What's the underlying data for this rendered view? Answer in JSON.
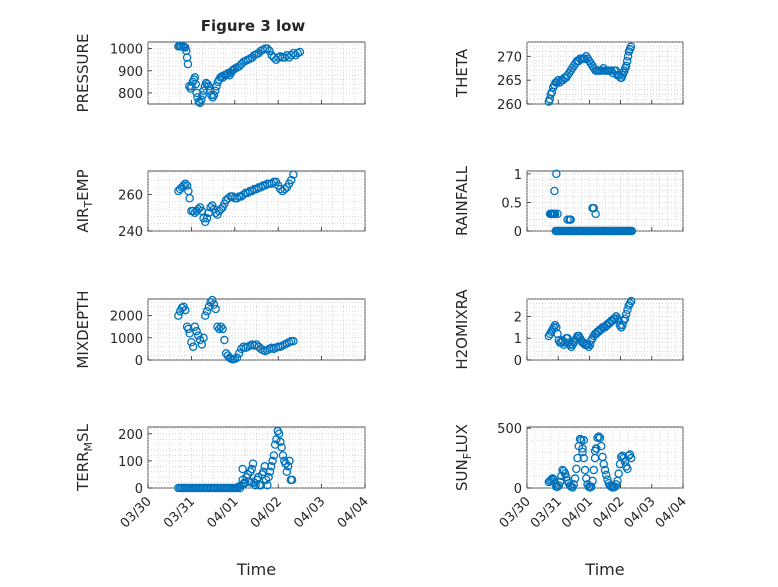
{
  "figure": {
    "title": "Figure 3 low",
    "marker_color": "#0072BD",
    "x_tick_labels": [
      "03/30",
      "03/31",
      "04/01",
      "04/02",
      "04/03",
      "04/04"
    ]
  },
  "chart_data": [
    {
      "type": "scatter",
      "ylabel": "PRESSURE",
      "xlabel": "",
      "ylim": [
        750,
        1030
      ],
      "yticks": [
        800,
        900,
        1000
      ],
      "x_unit": "days since 03/30",
      "x": [
        0.7,
        0.73,
        0.76,
        0.8,
        0.83,
        0.86,
        0.88,
        0.9,
        0.92,
        0.95,
        0.98,
        1.0,
        1.03,
        1.06,
        1.08,
        1.1,
        1.12,
        1.14,
        1.17,
        1.2,
        1.23,
        1.26,
        1.28,
        1.31,
        1.34,
        1.37,
        1.4,
        1.43,
        1.46,
        1.49,
        1.52,
        1.55,
        1.58,
        1.61,
        1.64,
        1.67,
        1.7,
        1.73,
        1.76,
        1.79,
        1.82,
        1.85,
        1.88,
        1.91,
        1.94,
        1.97,
        2.0,
        2.05,
        2.1,
        2.15,
        2.2,
        2.25,
        2.3,
        2.35,
        2.4,
        2.45,
        2.5,
        2.55,
        2.6,
        2.65,
        2.7,
        2.75,
        2.8,
        2.85,
        2.9,
        2.95,
        3.0,
        3.05,
        3.1,
        3.15,
        3.2,
        3.25,
        3.3,
        3.35,
        3.4,
        3.45,
        3.5
      ],
      "y": [
        1010,
        1010,
        1010,
        1010,
        1008,
        1005,
        990,
        960,
        930,
        830,
        820,
        830,
        850,
        860,
        870,
        840,
        800,
        780,
        760,
        755,
        770,
        790,
        810,
        830,
        845,
        840,
        830,
        810,
        790,
        780,
        790,
        810,
        830,
        850,
        860,
        870,
        875,
        870,
        880,
        880,
        885,
        890,
        880,
        890,
        900,
        905,
        910,
        915,
        920,
        930,
        940,
        945,
        950,
        955,
        960,
        970,
        975,
        980,
        990,
        995,
        1000,
        1000,
        990,
        970,
        960,
        950,
        960,
        965,
        960,
        960,
        970,
        960,
        970,
        980,
        970,
        980,
        985
      ]
    },
    {
      "type": "scatter",
      "ylabel": "THETA",
      "xlabel": "",
      "ylim": [
        260,
        273
      ],
      "yticks": [
        260,
        265,
        270
      ],
      "x_unit": "days since 03/30",
      "x": [
        0.7,
        0.73,
        0.76,
        0.8,
        0.84,
        0.88,
        0.92,
        0.96,
        1.0,
        1.05,
        1.1,
        1.15,
        1.2,
        1.25,
        1.3,
        1.35,
        1.4,
        1.45,
        1.5,
        1.55,
        1.6,
        1.65,
        1.7,
        1.75,
        1.8,
        1.85,
        1.9,
        1.95,
        2.0,
        2.05,
        2.1,
        2.15,
        2.2,
        2.25,
        2.3,
        2.35,
        2.4,
        2.45,
        2.5,
        2.55,
        2.6,
        2.65,
        2.7,
        2.75,
        2.8,
        2.85,
        2.9,
        2.95,
        3.0,
        3.03,
        3.06,
        3.09,
        3.12,
        3.15,
        3.18,
        3.21,
        3.24,
        3.27,
        3.3,
        3.33
      ],
      "y": [
        260.5,
        261,
        262,
        262.5,
        263.5,
        264,
        264.5,
        264.5,
        265,
        264.5,
        265,
        265,
        265.5,
        265.5,
        266,
        266.5,
        267,
        267.5,
        268,
        268.5,
        269,
        269,
        269.5,
        269.5,
        269.5,
        269.5,
        270,
        269.5,
        269,
        268.5,
        268,
        267.5,
        267,
        267,
        267,
        267,
        267,
        267.5,
        267,
        267,
        267,
        267,
        267,
        266.5,
        267,
        267,
        266,
        266,
        265.5,
        265.5,
        266,
        266.5,
        267,
        267.5,
        268,
        269,
        270,
        271,
        271.5,
        272
      ]
    },
    {
      "type": "scatter",
      "ylabel": "AIR_TEMP",
      "xlabel": "",
      "ylim": [
        240,
        273
      ],
      "yticks": [
        240,
        260
      ],
      "x_unit": "days since 03/30",
      "x": [
        0.7,
        0.74,
        0.78,
        0.82,
        0.86,
        0.9,
        0.93,
        0.96,
        1.0,
        1.04,
        1.08,
        1.12,
        1.16,
        1.2,
        1.24,
        1.28,
        1.32,
        1.36,
        1.4,
        1.44,
        1.48,
        1.52,
        1.56,
        1.6,
        1.64,
        1.68,
        1.72,
        1.76,
        1.8,
        1.85,
        1.9,
        1.95,
        2.0,
        2.05,
        2.1,
        2.15,
        2.2,
        2.25,
        2.3,
        2.35,
        2.4,
        2.45,
        2.5,
        2.55,
        2.6,
        2.65,
        2.7,
        2.75,
        2.8,
        2.85,
        2.9,
        2.95,
        3.0,
        3.05,
        3.1,
        3.15,
        3.2,
        3.25,
        3.3,
        3.35
      ],
      "y": [
        262,
        263,
        264,
        265,
        266,
        265,
        262,
        258,
        251,
        251,
        250,
        251,
        252,
        253,
        251,
        247,
        245,
        247,
        250,
        253,
        254,
        252,
        250,
        249,
        251,
        252,
        253,
        255,
        257,
        258,
        259,
        259,
        258,
        258,
        259,
        259,
        260,
        261,
        261,
        262,
        262,
        263,
        263,
        264,
        264,
        265,
        265,
        266,
        266,
        266,
        267,
        267,
        265,
        263,
        262,
        263,
        264,
        266,
        268,
        271
      ]
    },
    {
      "type": "scatter",
      "ylabel": "RAINFALL",
      "xlabel": "",
      "ylim": [
        0,
        1.05
      ],
      "yticks": [
        0,
        0.5,
        1
      ],
      "x_unit": "days since 03/30",
      "x": [
        0.74,
        0.77,
        0.8,
        0.83,
        0.86,
        0.88,
        0.9,
        0.92,
        0.96,
        1.0,
        1.04,
        1.08,
        1.12,
        1.16,
        1.2,
        1.24,
        1.28,
        1.32,
        1.36,
        1.4,
        1.44,
        1.48,
        1.52,
        1.56,
        1.6,
        1.64,
        1.68,
        1.72,
        1.76,
        1.8,
        1.84,
        1.88,
        1.92,
        1.96,
        2.0,
        2.04,
        2.08,
        2.12,
        2.16,
        2.2,
        2.24,
        2.28,
        2.32,
        2.36,
        2.4,
        2.44,
        2.48,
        2.52,
        2.56,
        2.6,
        2.64,
        2.68,
        2.72,
        2.76,
        2.8,
        2.84,
        2.88,
        2.92,
        2.96,
        3.0,
        3.04,
        3.08,
        3.12,
        3.16,
        3.2,
        3.24,
        3.28,
        3.32,
        3.36,
        0.86,
        0.98,
        0.94,
        1.3,
        1.36,
        1.4,
        2.1,
        2.14,
        2.2
      ],
      "y": [
        0.3,
        0.3,
        0.3,
        0.3,
        0.3,
        0.7,
        0.3,
        0,
        0,
        0,
        0,
        0,
        0,
        0,
        0,
        0,
        0,
        0,
        0,
        0,
        0,
        0,
        0,
        0,
        0,
        0,
        0,
        0,
        0,
        0,
        0,
        0,
        0,
        0,
        0,
        0,
        0,
        0,
        0,
        0,
        0,
        0,
        0,
        0,
        0,
        0,
        0,
        0,
        0,
        0,
        0,
        0,
        0,
        0,
        0,
        0,
        0,
        0,
        0,
        0,
        0,
        0,
        0,
        0,
        0,
        0,
        0,
        0,
        0,
        0.3,
        0.3,
        1.0,
        0.2,
        0.2,
        0.2,
        0.4,
        0.4,
        0.3
      ]
    },
    {
      "type": "scatter",
      "ylabel": "MIXDEPTH",
      "xlabel": "",
      "ylim": [
        0,
        2750
      ],
      "yticks": [
        0,
        1000,
        2000
      ],
      "x_unit": "days since 03/30",
      "x": [
        0.7,
        0.74,
        0.78,
        0.82,
        0.86,
        0.9,
        0.93,
        0.96,
        1.0,
        1.04,
        1.08,
        1.12,
        1.16,
        1.2,
        1.24,
        1.28,
        1.32,
        1.36,
        1.4,
        1.44,
        1.48,
        1.52,
        1.56,
        1.6,
        1.64,
        1.68,
        1.72,
        1.76,
        1.8,
        1.84,
        1.88,
        1.92,
        1.96,
        2.0,
        2.05,
        2.1,
        2.15,
        2.2,
        2.25,
        2.3,
        2.35,
        2.4,
        2.45,
        2.5,
        2.55,
        2.6,
        2.65,
        2.7,
        2.75,
        2.8,
        2.85,
        2.9,
        2.95,
        3.0,
        3.05,
        3.1,
        3.15,
        3.2,
        3.25,
        3.3,
        3.35
      ],
      "y": [
        2000,
        2200,
        2350,
        2400,
        2250,
        1500,
        1400,
        1200,
        800,
        600,
        1500,
        1300,
        1100,
        900,
        700,
        1000,
        2000,
        2200,
        2400,
        2600,
        2700,
        2500,
        2300,
        1500,
        1400,
        1500,
        1400,
        900,
        300,
        200,
        100,
        50,
        30,
        50,
        100,
        300,
        500,
        600,
        550,
        600,
        650,
        700,
        650,
        700,
        600,
        500,
        450,
        400,
        450,
        500,
        550,
        500,
        550,
        600,
        600,
        650,
        700,
        750,
        800,
        850,
        850
      ]
    },
    {
      "type": "scatter",
      "ylabel": "H2OMIXRA",
      "xlabel": "",
      "ylim": [
        0,
        2.8
      ],
      "yticks": [
        0,
        1,
        2
      ],
      "x_unit": "days since 03/30",
      "x": [
        0.7,
        0.74,
        0.78,
        0.82,
        0.86,
        0.9,
        0.94,
        0.98,
        1.02,
        1.06,
        1.1,
        1.14,
        1.18,
        1.22,
        1.26,
        1.3,
        1.34,
        1.38,
        1.42,
        1.46,
        1.5,
        1.54,
        1.58,
        1.62,
        1.66,
        1.7,
        1.74,
        1.78,
        1.82,
        1.86,
        1.9,
        1.94,
        1.98,
        2.02,
        2.06,
        2.1,
        2.14,
        2.18,
        2.22,
        2.26,
        2.3,
        2.34,
        2.38,
        2.42,
        2.46,
        2.5,
        2.54,
        2.58,
        2.62,
        2.66,
        2.7,
        2.74,
        2.78,
        2.82,
        2.86,
        2.9,
        2.94,
        2.98,
        3.02,
        3.06,
        3.1,
        3.14,
        3.18,
        3.22,
        3.26,
        3.3,
        3.34
      ],
      "y": [
        1.1,
        1.2,
        1.3,
        1.4,
        1.5,
        1.6,
        1.5,
        1.2,
        0.9,
        0.8,
        0.8,
        0.9,
        0.7,
        0.8,
        1.0,
        1.0,
        0.8,
        0.7,
        0.6,
        0.7,
        0.8,
        0.9,
        1.0,
        1.1,
        1.1,
        1.0,
        0.9,
        0.8,
        0.8,
        0.7,
        0.7,
        0.7,
        0.6,
        0.7,
        0.9,
        1.0,
        1.1,
        1.2,
        1.2,
        1.3,
        1.3,
        1.4,
        1.4,
        1.5,
        1.5,
        1.5,
        1.6,
        1.6,
        1.7,
        1.7,
        1.8,
        1.8,
        1.9,
        1.9,
        2.0,
        1.9,
        1.8,
        1.6,
        1.5,
        1.6,
        1.8,
        1.9,
        2.1,
        2.3,
        2.5,
        2.6,
        2.7
      ]
    },
    {
      "type": "scatter",
      "ylabel": "TERR_MSL",
      "xlabel": "Time",
      "ylim": [
        0,
        225
      ],
      "yticks": [
        0,
        100,
        200
      ],
      "x_unit": "days since 03/30",
      "x": [
        0.7,
        0.74,
        0.78,
        0.82,
        0.86,
        0.9,
        0.94,
        0.98,
        1.02,
        1.06,
        1.1,
        1.14,
        1.18,
        1.22,
        1.26,
        1.3,
        1.34,
        1.38,
        1.42,
        1.46,
        1.5,
        1.54,
        1.58,
        1.62,
        1.66,
        1.7,
        1.74,
        1.78,
        1.82,
        1.86,
        1.9,
        1.94,
        1.98,
        2.0,
        2.03,
        2.06,
        2.09,
        2.12,
        2.15,
        2.18,
        2.21,
        2.24,
        2.27,
        2.3,
        2.33,
        2.36,
        2.39,
        2.42,
        2.45,
        2.48,
        2.51,
        2.54,
        2.57,
        2.6,
        2.63,
        2.66,
        2.69,
        2.72,
        2.75,
        2.78,
        2.81,
        2.84,
        2.87,
        2.9,
        2.93,
        2.96,
        2.99,
        3.02,
        3.05,
        3.08,
        3.11,
        3.14,
        3.17,
        3.2,
        3.23,
        3.26,
        3.29,
        3.32,
        2.18,
        2.22,
        2.38
      ],
      "y": [
        0,
        0,
        0,
        0,
        0,
        0,
        0,
        0,
        0,
        0,
        0,
        0,
        0,
        0,
        0,
        0,
        0,
        0,
        0,
        0,
        0,
        0,
        0,
        0,
        0,
        0,
        0,
        0,
        0,
        0,
        0,
        0,
        0,
        0,
        0,
        0,
        5,
        0,
        10,
        30,
        15,
        20,
        40,
        50,
        25,
        60,
        70,
        90,
        20,
        10,
        30,
        40,
        10,
        10,
        50,
        60,
        80,
        30,
        10,
        40,
        60,
        80,
        100,
        120,
        160,
        180,
        210,
        200,
        170,
        150,
        120,
        100,
        90,
        60,
        80,
        100,
        30,
        30,
        70,
        20,
        20
      ]
    },
    {
      "type": "scatter",
      "ylabel": "SUN_FLUX",
      "xlabel": "Time",
      "ylim": [
        0,
        510
      ],
      "yticks": [
        0,
        500
      ],
      "x_unit": "days since 03/30",
      "x": [
        0.7,
        0.74,
        0.78,
        0.82,
        0.86,
        0.9,
        0.94,
        0.98,
        1.02,
        1.06,
        1.1,
        1.14,
        1.18,
        1.22,
        1.26,
        1.3,
        1.34,
        1.38,
        1.42,
        1.46,
        1.5,
        1.54,
        1.58,
        1.62,
        1.66,
        1.7,
        1.74,
        1.78,
        1.82,
        1.86,
        1.9,
        1.94,
        1.98,
        2.02,
        2.06,
        2.1,
        2.14,
        2.18,
        2.22,
        2.26,
        2.3,
        2.34,
        2.38,
        2.42,
        2.46,
        2.5,
        2.54,
        2.58,
        2.62,
        2.66,
        2.7,
        2.74,
        2.78,
        2.82,
        2.86,
        2.9,
        2.94,
        2.98,
        3.02,
        3.06,
        3.1,
        3.14,
        3.18,
        3.22,
        3.26,
        3.3,
        3.34,
        1.78,
        1.82,
        2.18,
        2.22
      ],
      "y": [
        50,
        60,
        70,
        80,
        70,
        40,
        10,
        10,
        20,
        50,
        100,
        150,
        140,
        120,
        90,
        60,
        40,
        20,
        10,
        5,
        30,
        80,
        160,
        250,
        350,
        410,
        400,
        330,
        250,
        150,
        80,
        30,
        10,
        5,
        10,
        60,
        150,
        250,
        330,
        420,
        430,
        420,
        350,
        260,
        200,
        150,
        110,
        70,
        40,
        20,
        10,
        5,
        5,
        10,
        30,
        60,
        120,
        200,
        260,
        270,
        250,
        220,
        180,
        160,
        270,
        280,
        250,
        300,
        400,
        310,
        330
      ]
    }
  ]
}
